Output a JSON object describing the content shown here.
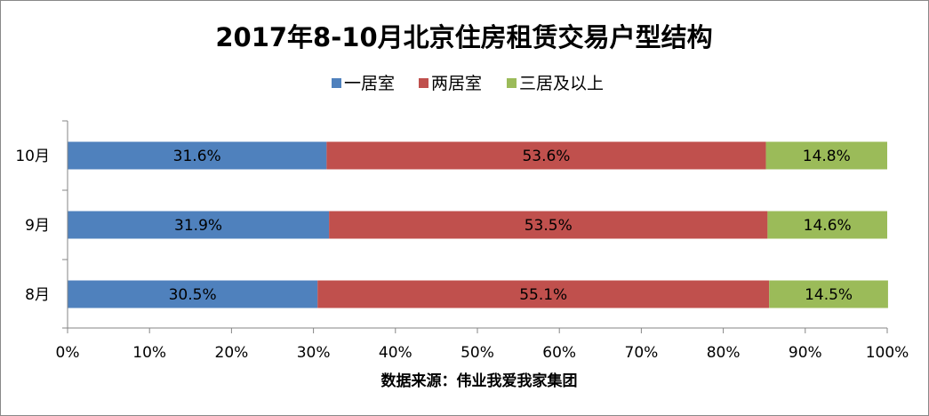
{
  "chart_data": {
    "type": "bar",
    "orientation": "horizontal",
    "stacked": "percent",
    "title": "2017年8-10月北京住房租赁交易户型结构",
    "categories": [
      "8月",
      "9月",
      "10月"
    ],
    "series": [
      {
        "name": "一居室",
        "values": [
          30.5,
          31.9,
          31.6
        ],
        "labels": [
          "30.5%",
          "31.9%",
          "31.6%"
        ],
        "color": "#4F81BD"
      },
      {
        "name": "两居室",
        "values": [
          55.1,
          53.5,
          53.6
        ],
        "labels": [
          "55.1%",
          "53.5%",
          "53.6%"
        ],
        "color": "#C0504D"
      },
      {
        "name": "三居及以上",
        "values": [
          14.5,
          14.6,
          14.8
        ],
        "labels": [
          "14.5%",
          "14.6%",
          "14.8%"
        ],
        "color": "#9BBB59"
      }
    ],
    "x_ticks": [
      "0%",
      "10%",
      "20%",
      "30%",
      "40%",
      "50%",
      "60%",
      "70%",
      "80%",
      "90%",
      "100%"
    ],
    "xlim": [
      0,
      100
    ],
    "xlabel": "数据来源：伟业我爱我家集团",
    "legend_position": "top",
    "grid": false
  }
}
